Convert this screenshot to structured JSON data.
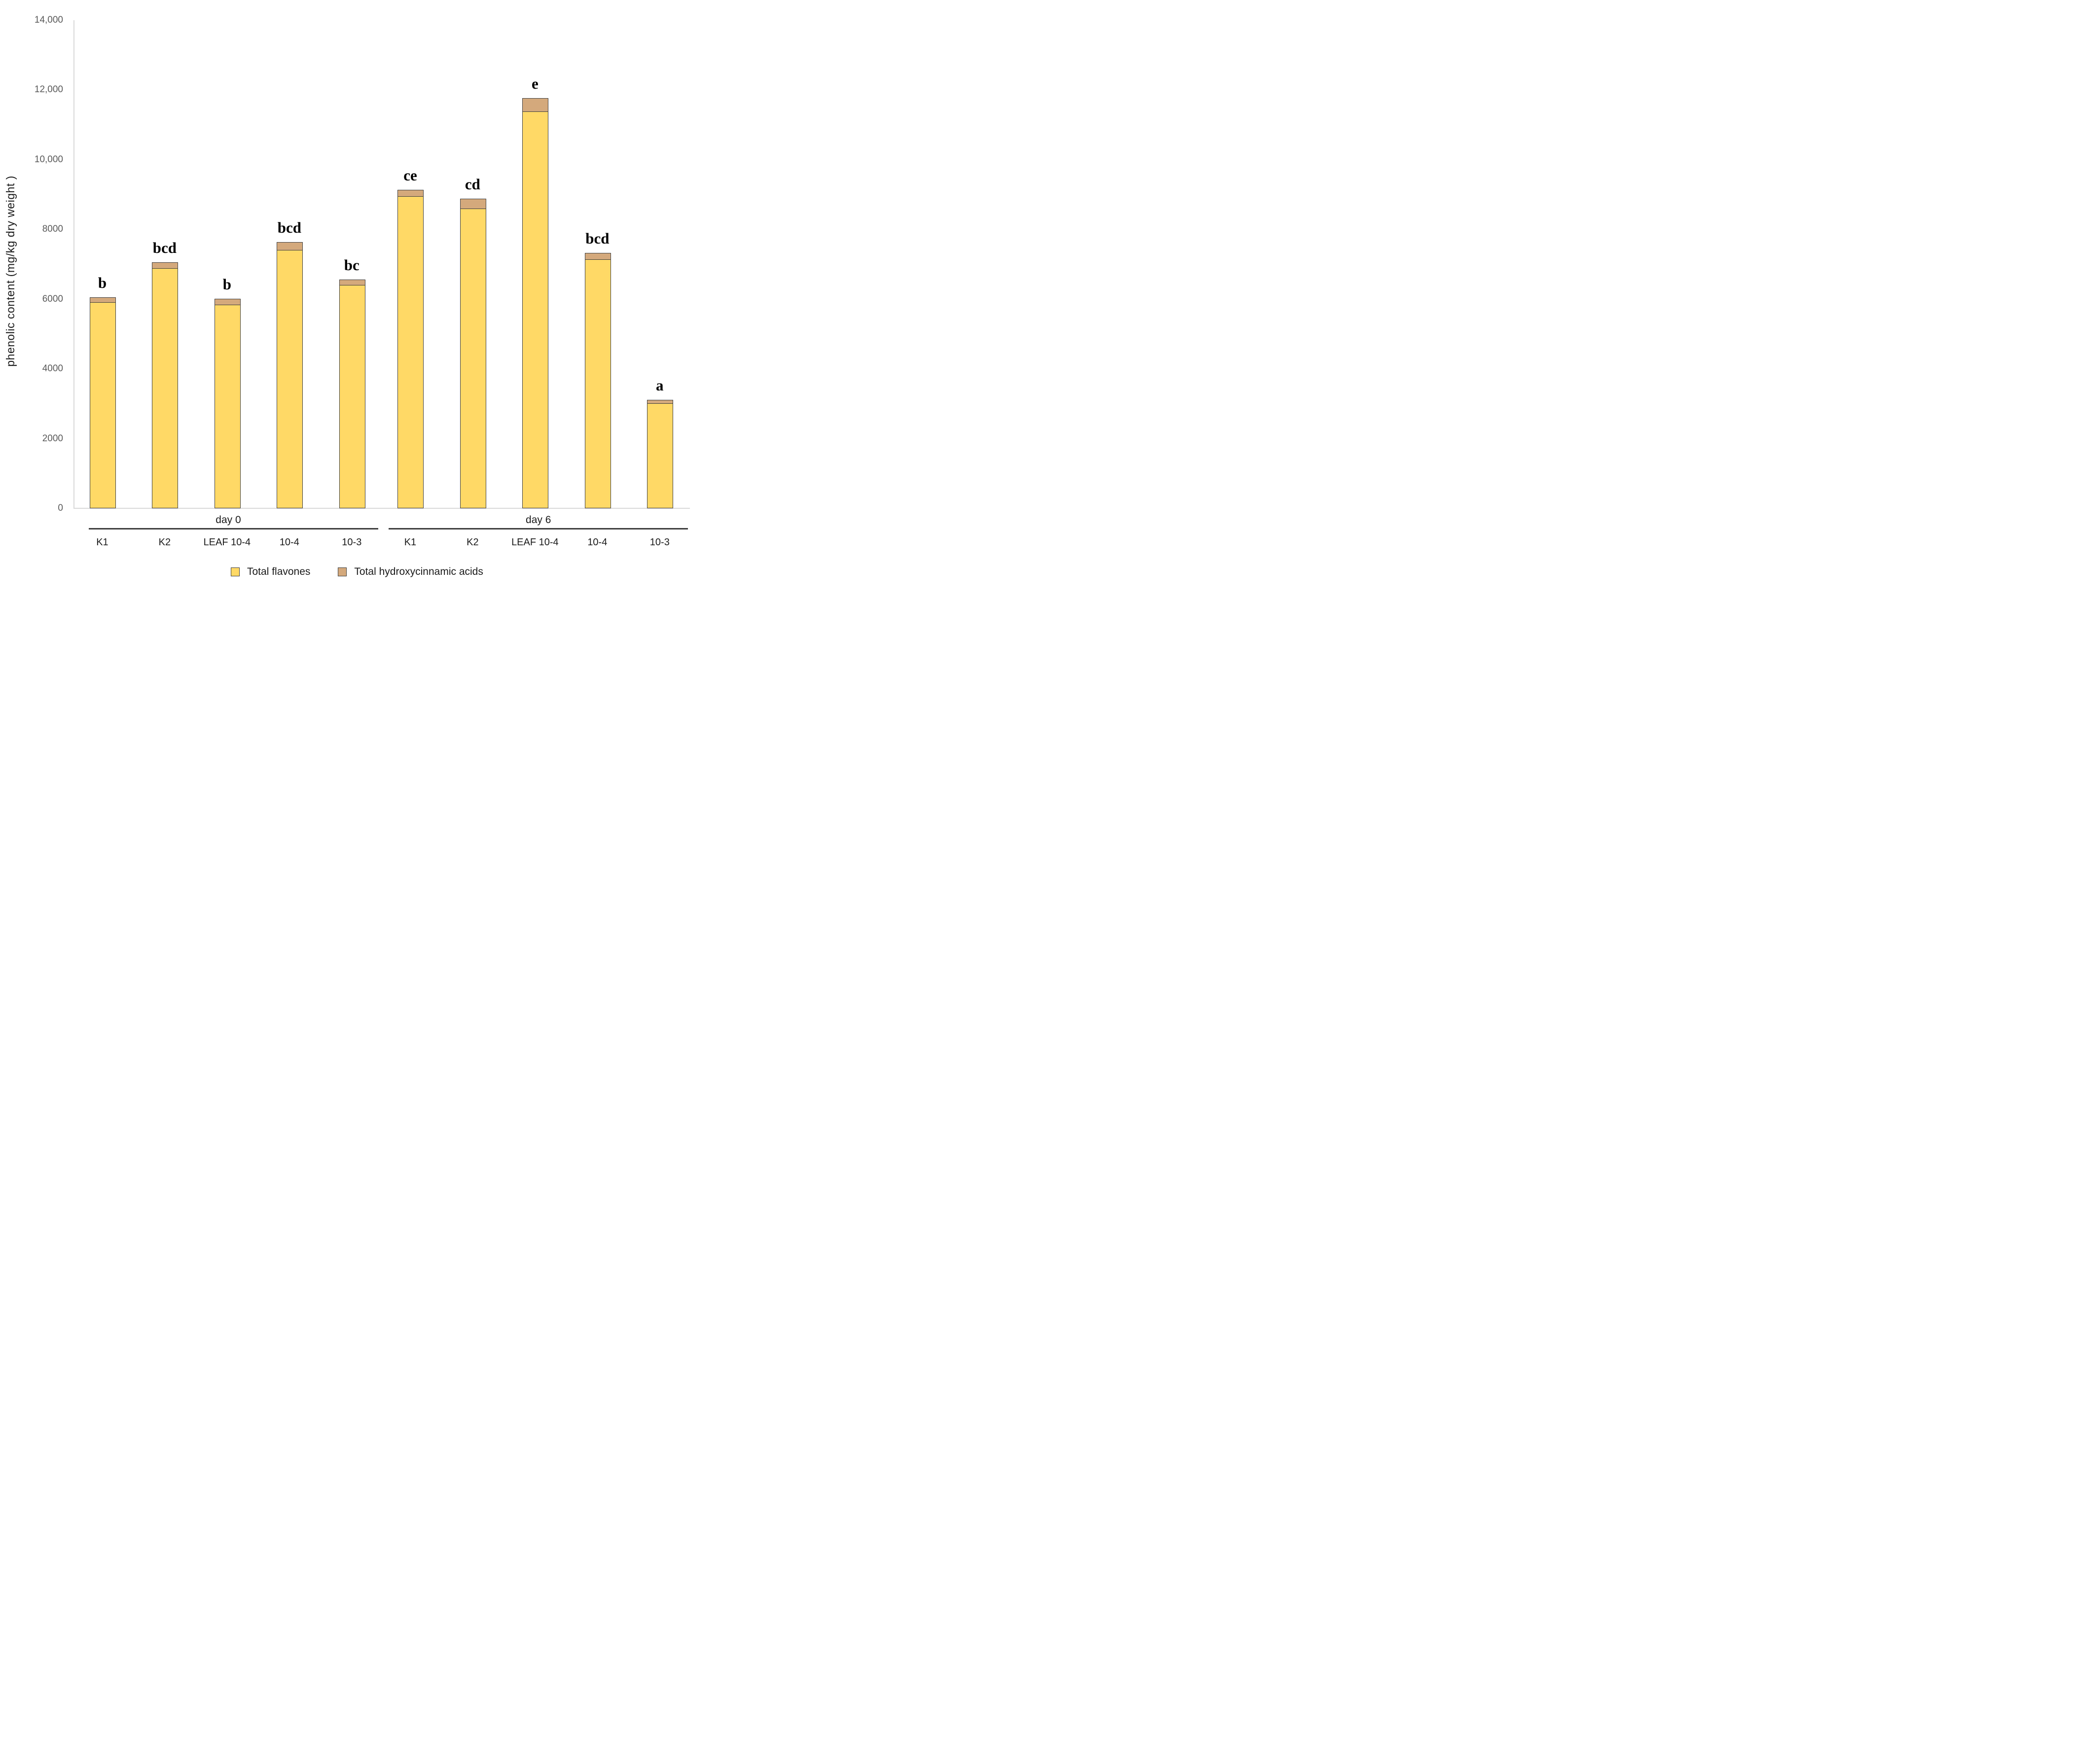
{
  "chart_data": {
    "type": "bar",
    "stacked": true,
    "title": "",
    "xlabel": "",
    "ylabel": "phenolic content (mg/kg dry weight )",
    "ylim": [
      0,
      14000
    ],
    "grid": false,
    "legend_position": "bottom",
    "ytick_values": [
      0,
      2000,
      4000,
      6000,
      8000,
      10000,
      12000,
      14000
    ],
    "ytick_labels": [
      "0",
      "2000",
      "4000",
      "6000",
      "8000",
      "10,000",
      "12,000",
      "14,000"
    ],
    "groups": [
      "day 0",
      "day 6"
    ],
    "categories": [
      "K1",
      "K2",
      "LEAF 10-4",
      "10-4",
      "10-3",
      "K1",
      "K2",
      "LEAF 10-4",
      "10-4",
      "10-3"
    ],
    "category_groups": [
      0,
      0,
      0,
      0,
      0,
      1,
      1,
      1,
      1,
      1
    ],
    "series": [
      {
        "name": "Total flavones",
        "color": "#FFD966",
        "values": [
          5920,
          6900,
          5850,
          7420,
          6420,
          8970,
          8610,
          11400,
          7160,
          3020
        ]
      },
      {
        "name": "Total hydroxycinnamic acids",
        "color": "#D4A97C",
        "values": [
          130,
          150,
          160,
          210,
          140,
          170,
          270,
          360,
          170,
          90
        ]
      }
    ],
    "significance_letters": [
      "b",
      "bcd",
      "b",
      "bcd",
      "bc",
      "ce",
      "cd",
      "e",
      "bcd",
      "a"
    ],
    "bar_outline_color": "#3F3F3F",
    "axis_line_color": "#D9D9D9",
    "tick_label_color": "#595959",
    "text_color": "#1A1A1A"
  },
  "legend": {
    "items": [
      {
        "label": "Total flavones",
        "color": "#FFD966"
      },
      {
        "label": "Total hydroxycinnamic acids",
        "color": "#D4A97C"
      }
    ]
  }
}
